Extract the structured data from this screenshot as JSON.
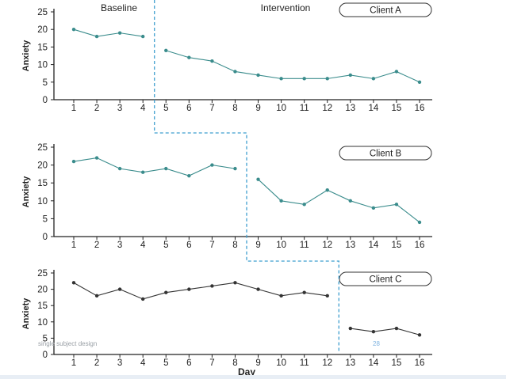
{
  "colors": {
    "series_ab": "#3a8c8c",
    "series_c": "#333333",
    "phase_line": "#3f9fcf",
    "axis": "#222222"
  },
  "chart_data": [
    {
      "type": "line",
      "client_label": "Client A",
      "phase_labels": [
        "Baseline",
        "Intervention"
      ],
      "ylabel": "Anxiety",
      "xlabel": "",
      "ylim": [
        0,
        25
      ],
      "yticks": [
        0,
        5,
        10,
        15,
        20,
        25
      ],
      "x": [
        1,
        2,
        3,
        4,
        5,
        6,
        7,
        8,
        9,
        10,
        11,
        12,
        13,
        14,
        15,
        16
      ],
      "baseline_end_day": 4,
      "baseline": [
        20,
        18,
        19,
        18
      ],
      "intervention": [
        14,
        12,
        11,
        8,
        7,
        6,
        6,
        6,
        7,
        6,
        8,
        5
      ]
    },
    {
      "type": "line",
      "client_label": "Client B",
      "phase_labels": [],
      "ylabel": "Anxiety",
      "xlabel": "",
      "ylim": [
        0,
        25
      ],
      "yticks": [
        0,
        5,
        10,
        15,
        20,
        25
      ],
      "x": [
        1,
        2,
        3,
        4,
        5,
        6,
        7,
        8,
        9,
        10,
        11,
        12,
        13,
        14,
        15,
        16
      ],
      "baseline_end_day": 8,
      "baseline": [
        21,
        22,
        19,
        18,
        19,
        17,
        20,
        19
      ],
      "intervention": [
        16,
        10,
        9,
        13,
        10,
        8,
        9,
        4
      ]
    },
    {
      "type": "line",
      "client_label": "Client C",
      "phase_labels": [],
      "ylabel": "Anxiety",
      "xlabel": "Day",
      "ylim": [
        0,
        25
      ],
      "yticks": [
        0,
        5,
        10,
        15,
        20,
        25
      ],
      "x": [
        1,
        2,
        3,
        4,
        5,
        6,
        7,
        8,
        9,
        10,
        11,
        12,
        13,
        14,
        15,
        16
      ],
      "baseline_end_day": 12,
      "baseline": [
        22,
        18,
        20,
        17,
        19,
        20,
        21,
        22,
        20,
        18,
        19,
        18
      ],
      "intervention": [
        8,
        7,
        8,
        6
      ]
    }
  ],
  "footer": {
    "left_text": "single subject design",
    "page_number": "28"
  }
}
